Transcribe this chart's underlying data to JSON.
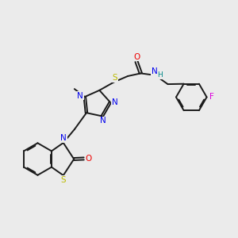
{
  "bg_color": "#ebebeb",
  "bond_color": "#1a1a1a",
  "atom_colors": {
    "N": "#0000ee",
    "S": "#bbbb00",
    "O": "#ee0000",
    "F": "#dd00dd",
    "H": "#008888",
    "C": "#1a1a1a"
  },
  "figsize": [
    3.0,
    3.0
  ],
  "dpi": 100
}
